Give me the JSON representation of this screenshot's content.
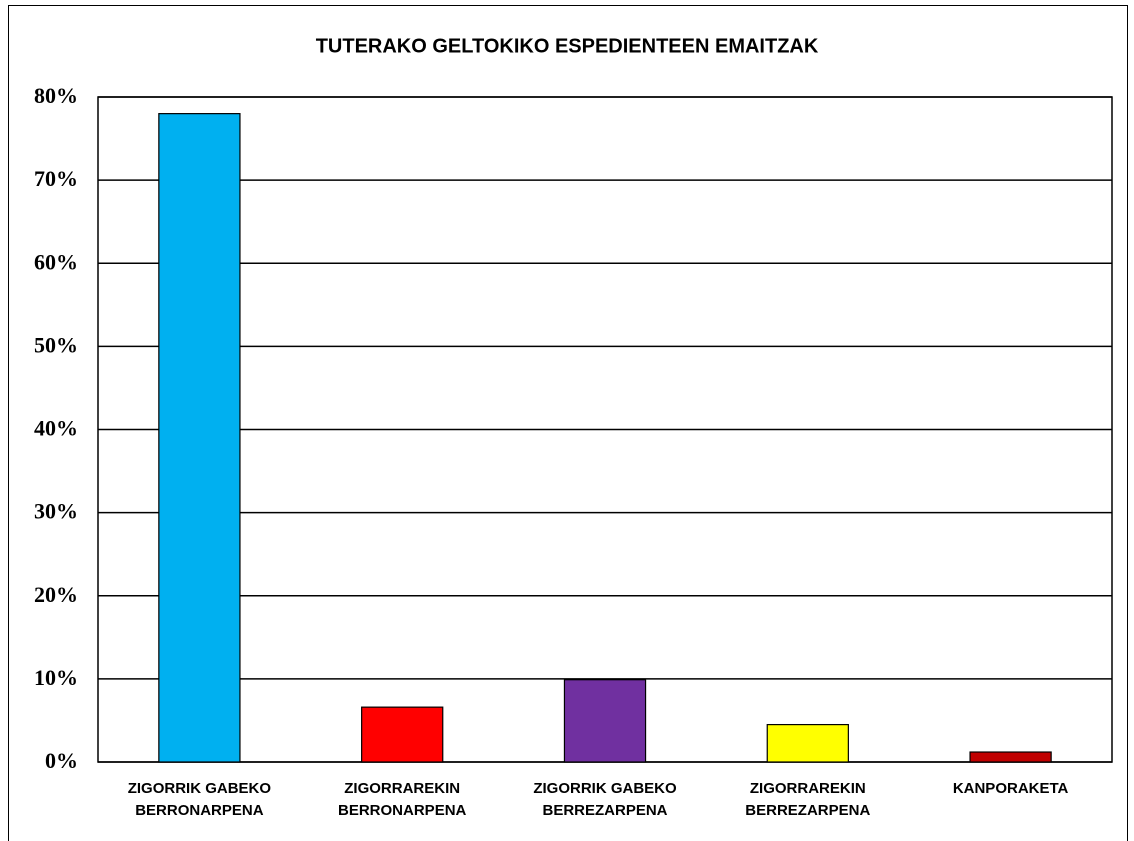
{
  "chart_data": {
    "type": "bar",
    "title": "TUTERAKO GELTOKIKO ESPEDIENTEEN EMAITZAK",
    "categories": [
      "ZIGORRIK GABEKO BERRONARPENA",
      "ZIGORRAREKIN BERRONARPENA",
      "ZIGORRIK GABEKO BERREZARPENA",
      "ZIGORRAREKIN BERREZARPENA",
      "KANPORAKETA"
    ],
    "values": [
      78,
      6.6,
      9.9,
      4.5,
      1.2
    ],
    "colors": [
      "#00b0f0",
      "#ff0000",
      "#7030a0",
      "#ffff00",
      "#c00000"
    ],
    "ylim": [
      0,
      80
    ],
    "yticks": [
      {
        "value": 0,
        "label": "0%"
      },
      {
        "value": 10,
        "label": "10%"
      },
      {
        "value": 20,
        "label": "20%"
      },
      {
        "value": 30,
        "label": "30%"
      },
      {
        "value": 40,
        "label": "40%"
      },
      {
        "value": 50,
        "label": "50%"
      },
      {
        "value": 60,
        "label": "60%"
      },
      {
        "value": 70,
        "label": "70%"
      },
      {
        "value": 80,
        "label": "80%"
      }
    ],
    "grid": true
  }
}
